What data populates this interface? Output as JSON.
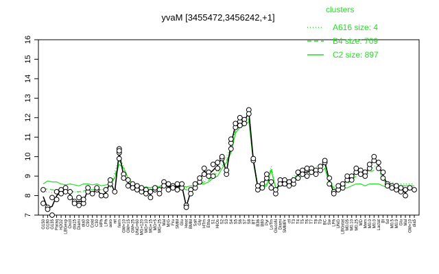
{
  "chart_data": {
    "type": "line",
    "title": "yvaM [3455472,3456242,+1]",
    "xlabel": "",
    "ylabel": "",
    "ylim": [
      7,
      16
    ],
    "yticks": [
      7,
      8,
      9,
      10,
      11,
      12,
      13,
      14,
      15,
      16
    ],
    "grid": false,
    "legend": {
      "title": "clusters",
      "placement": "top-right",
      "entries": [
        {
          "label": "A616 size: 4",
          "style": "dotted"
        },
        {
          "label": "B4 size: 709",
          "style": "dashed"
        },
        {
          "label": "C2 size: 897",
          "style": "solid"
        }
      ]
    },
    "line_color": "#22dd22",
    "point_color": "#000000",
    "categories": [
      "G150",
      "G180",
      "G135",
      "Paraq",
      "H2O2",
      "LBGexp",
      "Oxctl",
      "dia15",
      "Diami",
      "dia0",
      "C90",
      "Cold",
      "C30",
      "HPh",
      "LPh",
      "aero",
      "nit",
      "ferm",
      "GM+10",
      "GM+15",
      "GM+25",
      "UNG+60",
      "MG+120",
      "MG+10",
      "MG+15",
      "MG+5",
      "MG+25",
      "Mal",
      "M/G",
      "Fru",
      "SMM",
      "Glu",
      "Heat",
      "BMM",
      "Salt",
      "Gly",
      "HTm",
      "Etha",
      "S1",
      "HiOs",
      "S2",
      "S3",
      "S4",
      "S5",
      "S6",
      "S7",
      "S8",
      "BT",
      "B36",
      "B80",
      "Pyr",
      "LoTm",
      "GlucoN",
      "Diami2",
      "SMMPr",
      "ctl",
      "T3",
      "T4",
      "T5",
      "T6",
      "T7",
      "T8",
      "T9",
      "BC",
      "Sw",
      "LPh2",
      "UNG",
      "LBGstat",
      "M0.05",
      "M0.10",
      "M0.25",
      "MD",
      "Mem",
      "M0.0",
      "M0.0b",
      "Lactat",
      "BI",
      "Sd",
      "M0.5",
      "M0.9",
      "Glu2",
      "Mal2",
      "GM+10b",
      "dia5"
    ],
    "x_tick_labels": [
      "G150",
      "G180",
      "G135",
      "Paraq",
      "H2O2",
      "LBGexp",
      "Oxctl",
      "dia15",
      "Diami",
      "dia0",
      "C90",
      "Cold",
      "C30",
      "HPh",
      "LPh",
      "aero",
      "nit",
      "ferm",
      "GM+10",
      "GM+15",
      "GM+25",
      "UNG+60",
      "MG+120",
      "MG+10",
      "MG+15",
      "MG+5",
      "MG+25",
      "Mal",
      "M/G",
      "Fru",
      "SMM",
      "Glu",
      "Heat",
      "BMM",
      "Salt",
      "Gly",
      "HTm",
      "Etha",
      "S1",
      "HiOs",
      "S2",
      "S3",
      "S4",
      "S5",
      "S6",
      "S7",
      "S8",
      "BT",
      "B36",
      "B80",
      "Pyr",
      "LoTm",
      "GlucoN",
      "Diami",
      "SMMPr",
      "ctl",
      "T3",
      "T4",
      "T5",
      "T6",
      "T7",
      "T8",
      "T9",
      "BC",
      "Sw",
      "LPh",
      "UNG",
      "LBGstat",
      "M0.05",
      "M0.10",
      "M0.25",
      "MD",
      "Mem",
      "M0.0",
      "M0.0",
      "Lactat",
      "BI",
      "Sd",
      "M0.5",
      "M0.9",
      "Glu",
      "Mal",
      "GM+10",
      "dia5"
    ],
    "series": [
      {
        "style": "solid",
        "values": [
          8.6,
          8.75,
          8.7,
          8.7,
          8.6,
          8.55,
          8.6,
          8.55,
          8.5,
          8.6,
          8.6,
          8.55,
          8.6,
          8.5,
          8.55,
          8.6,
          8.9,
          9.6,
          9.4,
          8.9,
          8.6,
          8.5,
          8.4,
          8.45,
          8.4,
          8.5,
          8.45,
          8.6,
          8.5,
          8.5,
          8.5,
          8.5,
          8.45,
          8.5,
          8.5,
          8.6,
          8.6,
          8.7,
          8.9,
          9.0,
          9.4,
          9.7,
          10.2,
          11.2,
          11.5,
          11.6,
          11.8,
          9.7,
          8.4,
          8.4,
          8.5,
          9.3,
          8.4,
          8.5,
          8.5,
          8.6,
          8.8,
          8.9,
          9.0,
          9.0,
          9.1,
          9.3,
          9.2,
          9.4,
          8.6,
          8.4,
          8.3,
          8.4,
          8.4,
          8.5,
          8.6,
          8.6,
          8.5,
          8.6,
          8.6,
          8.6,
          8.5,
          8.4,
          8.4,
          8.4,
          8.5,
          8.5,
          8.5,
          8.5
        ]
      },
      {
        "style": "dashed",
        "values": [
          8.3,
          8.35,
          8.3,
          8.25,
          8.3,
          8.2,
          8.2,
          8.2,
          8.2,
          8.25,
          8.3,
          8.3,
          8.3,
          8.3,
          8.3,
          8.4,
          9.0,
          9.8,
          9.4,
          8.8,
          8.5,
          8.4,
          8.3,
          8.3,
          8.3,
          8.4,
          8.4,
          8.45,
          8.4,
          8.4,
          8.4,
          8.4,
          8.3,
          8.3,
          8.5,
          8.6,
          8.7,
          8.8,
          9.0,
          9.2,
          9.5,
          9.8,
          10.3,
          11.3,
          11.6,
          11.7,
          11.9,
          9.8,
          8.5,
          8.4,
          8.6,
          9.4,
          8.4,
          8.5,
          8.6,
          8.7,
          8.9,
          9.1,
          9.2,
          9.2,
          9.3,
          9.4,
          9.4,
          9.6,
          8.7,
          8.4,
          8.35,
          8.4,
          8.6,
          8.8,
          9.0,
          9.1,
          9.0,
          9.2,
          9.3,
          9.4,
          8.8,
          8.6,
          8.6,
          8.5,
          8.5,
          8.5,
          8.5,
          8.5
        ]
      },
      {
        "style": "dotted",
        "values": [
          8.2,
          8.2,
          8.15,
          8.2,
          8.2,
          8.1,
          8.2,
          8.2,
          8.15,
          8.2,
          8.3,
          8.3,
          8.3,
          8.3,
          8.35,
          8.5,
          9.2,
          10.0,
          9.5,
          8.9,
          8.6,
          8.5,
          8.4,
          8.4,
          8.4,
          8.5,
          8.5,
          8.6,
          8.5,
          8.5,
          8.5,
          8.5,
          8.4,
          8.4,
          8.6,
          8.7,
          8.8,
          8.9,
          9.1,
          9.3,
          9.7,
          10.0,
          10.5,
          11.4,
          11.7,
          11.8,
          12.0,
          9.9,
          8.6,
          8.5,
          8.7,
          9.5,
          8.5,
          8.6,
          8.7,
          8.8,
          9.0,
          9.2,
          9.3,
          9.3,
          9.4,
          9.5,
          9.5,
          9.7,
          8.8,
          8.5,
          8.4,
          8.5,
          8.7,
          8.9,
          9.1,
          9.2,
          9.1,
          9.3,
          9.5,
          9.6,
          8.9,
          8.7,
          8.7,
          8.6,
          8.6,
          8.6,
          8.6,
          8.6
        ]
      }
    ],
    "points": [
      {
        "x": 0,
        "y": 7.6
      },
      {
        "x": 0,
        "y": 8.3
      },
      {
        "x": 1,
        "y": 7.4
      },
      {
        "x": 1,
        "y": 7.3
      },
      {
        "x": 2,
        "y": 7.0
      },
      {
        "x": 2,
        "y": 7.9
      },
      {
        "x": 3,
        "y": 7.8
      },
      {
        "x": 3,
        "y": 8.2
      },
      {
        "x": 4,
        "y": 8.3
      },
      {
        "x": 4,
        "y": 8.1
      },
      {
        "x": 5,
        "y": 8.4
      },
      {
        "x": 5,
        "y": 8.2
      },
      {
        "x": 6,
        "y": 8.2
      },
      {
        "x": 6,
        "y": 7.9
      },
      {
        "x": 7,
        "y": 7.7
      },
      {
        "x": 7,
        "y": 7.6
      },
      {
        "x": 8,
        "y": 7.5
      },
      {
        "x": 8,
        "y": 7.9
      },
      {
        "x": 9,
        "y": 7.6
      },
      {
        "x": 9,
        "y": 7.8
      },
      {
        "x": 10,
        "y": 8.2
      },
      {
        "x": 10,
        "y": 8.4
      },
      {
        "x": 11,
        "y": 8.1
      },
      {
        "x": 12,
        "y": 8.3
      },
      {
        "x": 12,
        "y": 8.4
      },
      {
        "x": 13,
        "y": 8.0
      },
      {
        "x": 14,
        "y": 8.0
      },
      {
        "x": 14,
        "y": 8.3
      },
      {
        "x": 15,
        "y": 8.6
      },
      {
        "x": 15,
        "y": 8.8
      },
      {
        "x": 16,
        "y": 8.2
      },
      {
        "x": 17,
        "y": 9.9
      },
      {
        "x": 17,
        "y": 10.2
      },
      {
        "x": 17,
        "y": 10.4
      },
      {
        "x": 17,
        "y": 10.3
      },
      {
        "x": 18,
        "y": 9.1
      },
      {
        "x": 18,
        "y": 8.9
      },
      {
        "x": 19,
        "y": 8.8
      },
      {
        "x": 19,
        "y": 8.5
      },
      {
        "x": 20,
        "y": 8.6
      },
      {
        "x": 20,
        "y": 8.4
      },
      {
        "x": 21,
        "y": 8.3
      },
      {
        "x": 21,
        "y": 8.5
      },
      {
        "x": 22,
        "y": 8.2
      },
      {
        "x": 22,
        "y": 8.4
      },
      {
        "x": 23,
        "y": 8.3
      },
      {
        "x": 23,
        "y": 8.1
      },
      {
        "x": 24,
        "y": 8.2
      },
      {
        "x": 24,
        "y": 7.9
      },
      {
        "x": 25,
        "y": 8.3
      },
      {
        "x": 25,
        "y": 8.4
      },
      {
        "x": 26,
        "y": 8.3
      },
      {
        "x": 26,
        "y": 8.1
      },
      {
        "x": 27,
        "y": 8.7
      },
      {
        "x": 27,
        "y": 8.5
      },
      {
        "x": 28,
        "y": 8.6
      },
      {
        "x": 28,
        "y": 8.3
      },
      {
        "x": 29,
        "y": 8.5
      },
      {
        "x": 29,
        "y": 8.4
      },
      {
        "x": 30,
        "y": 8.6
      },
      {
        "x": 30,
        "y": 8.3
      },
      {
        "x": 31,
        "y": 8.4
      },
      {
        "x": 31,
        "y": 8.6
      },
      {
        "x": 32,
        "y": 7.5
      },
      {
        "x": 32,
        "y": 7.4
      },
      {
        "x": 33,
        "y": 8.3
      },
      {
        "x": 33,
        "y": 8.1
      },
      {
        "x": 34,
        "y": 8.4
      },
      {
        "x": 34,
        "y": 8.6
      },
      {
        "x": 35,
        "y": 8.7
      },
      {
        "x": 35,
        "y": 8.9
      },
      {
        "x": 36,
        "y": 9.4
      },
      {
        "x": 36,
        "y": 9.1
      },
      {
        "x": 37,
        "y": 9.2
      },
      {
        "x": 37,
        "y": 9.0
      },
      {
        "x": 38,
        "y": 9.6
      },
      {
        "x": 38,
        "y": 9.0
      },
      {
        "x": 39,
        "y": 9.7
      },
      {
        "x": 39,
        "y": 9.4
      },
      {
        "x": 40,
        "y": 9.9
      },
      {
        "x": 40,
        "y": 10.0
      },
      {
        "x": 41,
        "y": 9.1
      },
      {
        "x": 41,
        "y": 9.3
      },
      {
        "x": 42,
        "y": 10.4
      },
      {
        "x": 42,
        "y": 10.7
      },
      {
        "x": 42,
        "y": 10.9
      },
      {
        "x": 43,
        "y": 11.5
      },
      {
        "x": 43,
        "y": 11.7
      },
      {
        "x": 44,
        "y": 11.8
      },
      {
        "x": 44,
        "y": 12.0
      },
      {
        "x": 44,
        "y": 11.6
      },
      {
        "x": 45,
        "y": 11.9
      },
      {
        "x": 45,
        "y": 11.7
      },
      {
        "x": 46,
        "y": 12.4
      },
      {
        "x": 46,
        "y": 12.2
      },
      {
        "x": 47,
        "y": 9.8
      },
      {
        "x": 47,
        "y": 9.9
      },
      {
        "x": 48,
        "y": 8.3
      },
      {
        "x": 48,
        "y": 8.5
      },
      {
        "x": 49,
        "y": 8.6
      },
      {
        "x": 49,
        "y": 8.4
      },
      {
        "x": 50,
        "y": 8.9
      },
      {
        "x": 50,
        "y": 9.1
      },
      {
        "x": 51,
        "y": 8.7
      },
      {
        "x": 51,
        "y": 8.4
      },
      {
        "x": 52,
        "y": 8.1
      },
      {
        "x": 52,
        "y": 8.3
      },
      {
        "x": 53,
        "y": 8.8
      },
      {
        "x": 53,
        "y": 8.6
      },
      {
        "x": 54,
        "y": 8.8
      },
      {
        "x": 54,
        "y": 8.6
      },
      {
        "x": 55,
        "y": 8.7
      },
      {
        "x": 55,
        "y": 8.5
      },
      {
        "x": 56,
        "y": 8.6
      },
      {
        "x": 56,
        "y": 8.8
      },
      {
        "x": 57,
        "y": 9.2
      },
      {
        "x": 57,
        "y": 8.9
      },
      {
        "x": 58,
        "y": 9.3
      },
      {
        "x": 58,
        "y": 9.1
      },
      {
        "x": 59,
        "y": 9.4
      },
      {
        "x": 59,
        "y": 9.0
      },
      {
        "x": 60,
        "y": 9.4
      },
      {
        "x": 60,
        "y": 9.2
      },
      {
        "x": 61,
        "y": 9.3
      },
      {
        "x": 61,
        "y": 9.1
      },
      {
        "x": 62,
        "y": 9.5
      },
      {
        "x": 62,
        "y": 9.3
      },
      {
        "x": 63,
        "y": 9.7
      },
      {
        "x": 63,
        "y": 9.8
      },
      {
        "x": 64,
        "y": 8.9
      },
      {
        "x": 64,
        "y": 8.6
      },
      {
        "x": 65,
        "y": 8.2
      },
      {
        "x": 65,
        "y": 8.1
      },
      {
        "x": 66,
        "y": 8.3
      },
      {
        "x": 66,
        "y": 8.5
      },
      {
        "x": 67,
        "y": 8.4
      },
      {
        "x": 67,
        "y": 8.6
      },
      {
        "x": 68,
        "y": 8.8
      },
      {
        "x": 68,
        "y": 9.0
      },
      {
        "x": 69,
        "y": 9.0
      },
      {
        "x": 69,
        "y": 8.8
      },
      {
        "x": 70,
        "y": 9.2
      },
      {
        "x": 70,
        "y": 9.4
      },
      {
        "x": 71,
        "y": 9.3
      },
      {
        "x": 71,
        "y": 9.1
      },
      {
        "x": 72,
        "y": 9.2
      },
      {
        "x": 72,
        "y": 9.0
      },
      {
        "x": 73,
        "y": 9.4
      },
      {
        "x": 73,
        "y": 9.6
      },
      {
        "x": 74,
        "y": 9.8
      },
      {
        "x": 74,
        "y": 10.0
      },
      {
        "x": 75,
        "y": 9.7
      },
      {
        "x": 75,
        "y": 9.4
      },
      {
        "x": 76,
        "y": 8.9
      },
      {
        "x": 76,
        "y": 9.2
      },
      {
        "x": 77,
        "y": 8.6
      },
      {
        "x": 77,
        "y": 8.5
      },
      {
        "x": 78,
        "y": 8.5
      },
      {
        "x": 78,
        "y": 8.4
      },
      {
        "x": 79,
        "y": 8.3
      },
      {
        "x": 79,
        "y": 8.5
      },
      {
        "x": 80,
        "y": 8.2
      },
      {
        "x": 80,
        "y": 8.4
      },
      {
        "x": 81,
        "y": 8.0
      },
      {
        "x": 81,
        "y": 8.3
      },
      {
        "x": 82,
        "y": 8.4
      },
      {
        "x": 83,
        "y": 8.3
      }
    ]
  }
}
